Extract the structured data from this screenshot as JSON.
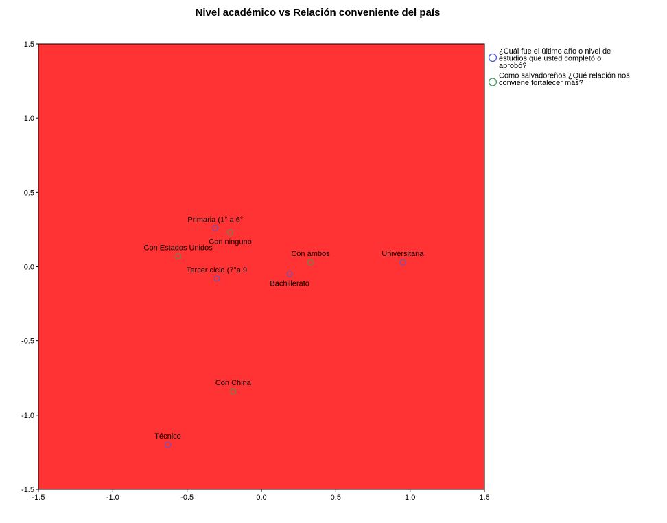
{
  "chart_data": {
    "type": "scatter",
    "title": "Nivel académico vs Relación conveniente del país",
    "xlabel": "",
    "ylabel": "",
    "xlim": [
      -1.5,
      1.5
    ],
    "ylim": [
      -1.5,
      1.5
    ],
    "x_ticks": [
      "-1.5",
      "-1.0",
      "-0.5",
      "0.0",
      "0.5",
      "1.0",
      "1.5"
    ],
    "y_ticks": [
      "1.5",
      "1.0",
      "0.5",
      "0.0",
      "-0.5",
      "-1.0",
      "-1.5"
    ],
    "plot_background": "#ff3333",
    "grid": false,
    "legend_position": "top-right",
    "series": [
      {
        "name": "¿Cuál fue el último año o nivel de estudios que usted completó o aprobó?",
        "legend_lines": [
          "¿Cuál fue el último año o nivel de",
          "estudios que usted completó o",
          "aprobó?"
        ],
        "color": "#4d5bd6",
        "points": [
          {
            "label": "Primaria (1° a 6°",
            "x": -0.31,
            "y": 0.26,
            "label_pos": "above"
          },
          {
            "label": "Tercer ciclo (7°a 9",
            "x": -0.3,
            "y": -0.08,
            "label_pos": "above"
          },
          {
            "label": "Bachillerato",
            "x": 0.19,
            "y": -0.05,
            "label_pos": "below"
          },
          {
            "label": "Universitaria",
            "x": 0.95,
            "y": 0.03,
            "label_pos": "above"
          },
          {
            "label": "Técnico",
            "x": -0.63,
            "y": -1.2,
            "label_pos": "above"
          }
        ]
      },
      {
        "name": "Como salvadoreños ¿Qué relación nos conviene fortalecer más?",
        "legend_lines": [
          "Como salvadoreños ¿Qué relación nos",
          "conviene fortalecer más?"
        ],
        "color": "#3aa05a",
        "points": [
          {
            "label": "Con ninguno",
            "x": -0.21,
            "y": 0.23,
            "label_pos": "below"
          },
          {
            "label": "Con Estados Unidos",
            "x": -0.56,
            "y": 0.07,
            "label_pos": "above"
          },
          {
            "label": "Con ambos",
            "x": 0.33,
            "y": 0.03,
            "label_pos": "above"
          },
          {
            "label": "Con China",
            "x": -0.19,
            "y": -0.84,
            "label_pos": "above"
          }
        ]
      }
    ]
  }
}
